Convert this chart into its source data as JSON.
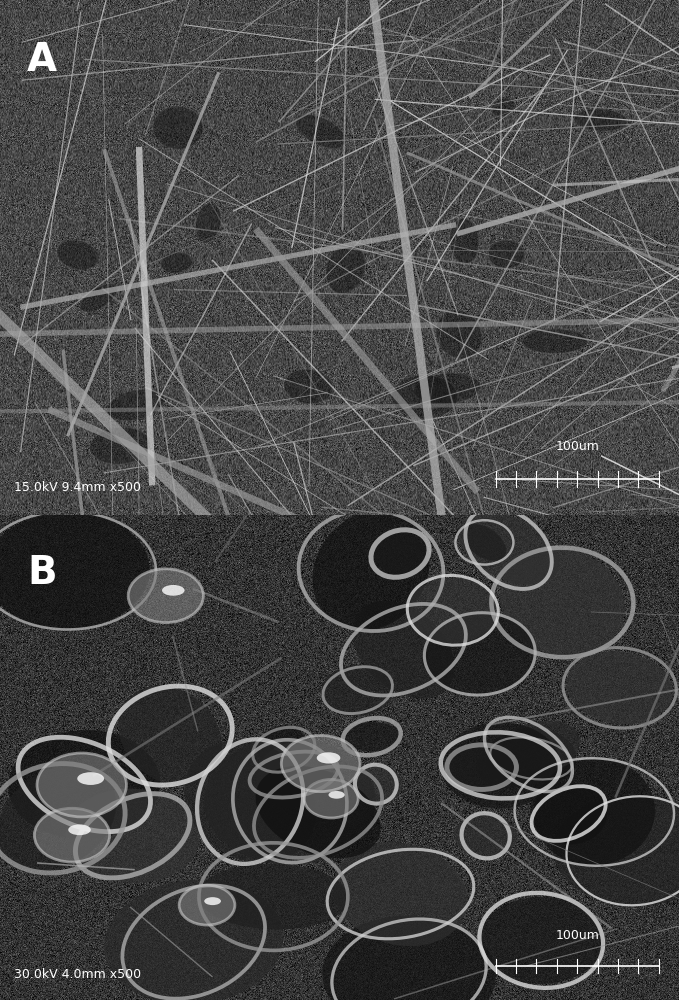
{
  "fig_width": 6.79,
  "fig_height": 10.0,
  "dpi": 100,
  "panel_A_label": "A",
  "panel_B_label": "B",
  "label_fontsize": 28,
  "label_color": "#ffffff",
  "label_fontweight": "bold",
  "panel_A_scale_text": "15.0kV 9.4mm x500",
  "panel_B_scale_text": "30.0kV 4.0mm x500",
  "scale_bar_text": "100um",
  "scale_text_color": "#ffffff",
  "scale_text_fontsize": 9,
  "bg_color_A_dark": "#1a1a1a",
  "bg_color_A_mid": "#404040",
  "bg_color_B_dark": "#111111",
  "bg_color_B_mid": "#333333",
  "border_color": "#888888",
  "border_width": 1.5,
  "panel_split": 0.485
}
